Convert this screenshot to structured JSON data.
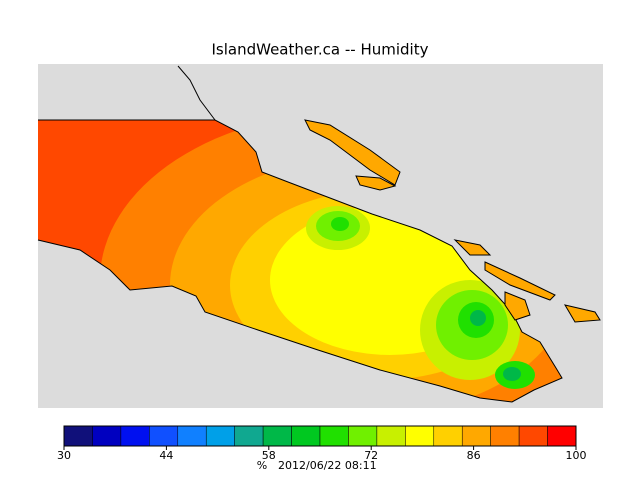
{
  "title": "IslandWeather.ca -- Humidity",
  "colorbar": {
    "range": [
      30,
      100
    ],
    "ticks": [
      30,
      44,
      58,
      72,
      86,
      100
    ],
    "colors": [
      "#10107a",
      "#0000c0",
      "#0010f0",
      "#1050ff",
      "#1080ff",
      "#00a0e8",
      "#10a890",
      "#00b848",
      "#00c820",
      "#20e000",
      "#70f000",
      "#c8f000",
      "#ffff00",
      "#ffd000",
      "#ffa800",
      "#ff8000",
      "#ff4800",
      "#ff0000"
    ],
    "unit": "%",
    "timestamp": "2012/06/22 08:11"
  }
}
